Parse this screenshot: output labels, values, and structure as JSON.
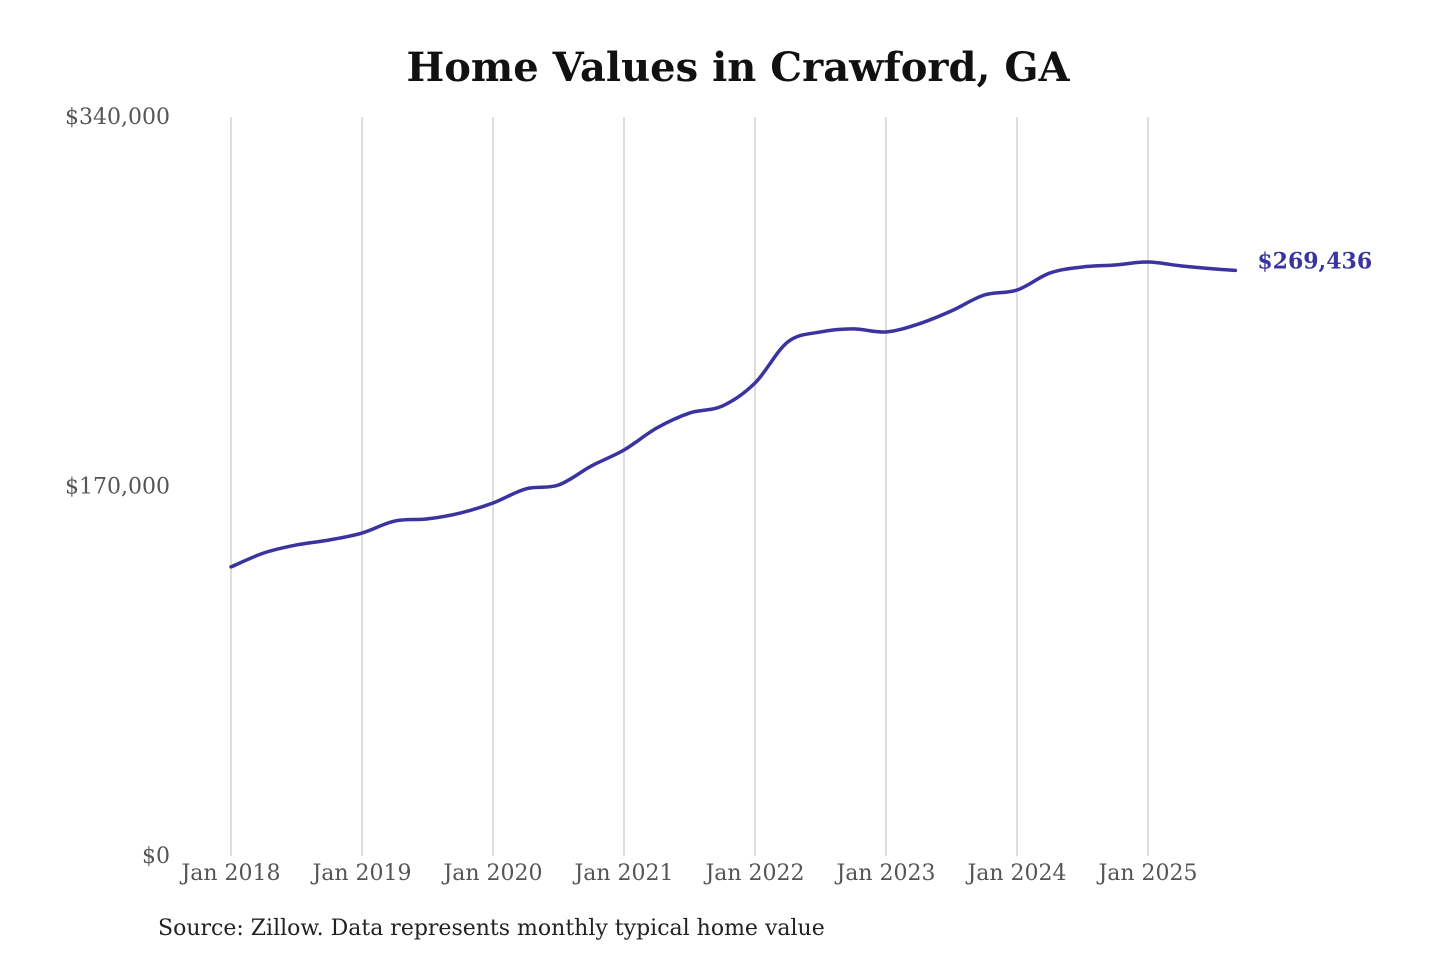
{
  "chart_data": {
    "type": "line",
    "title": "Home Values in Crawford, GA",
    "xlabel": "",
    "ylabel": "",
    "ylim": [
      0,
      340000
    ],
    "y_ticks": [
      "$0",
      "$170,000",
      "$340,000"
    ],
    "y_tick_values": [
      0,
      170000,
      340000
    ],
    "x_ticks": [
      "Jan 2018",
      "Jan 2019",
      "Jan 2020",
      "Jan 2021",
      "Jan 2022",
      "Jan 2023",
      "Jan 2024",
      "Jan 2025"
    ],
    "grid": "vertical",
    "line_color": "#3a33a0",
    "end_label": "$269,436",
    "series": [
      {
        "x": [
          "2018-01",
          "2018-04",
          "2018-07",
          "2018-10",
          "2019-01",
          "2019-04",
          "2019-07",
          "2019-10",
          "2020-01",
          "2020-04",
          "2020-07",
          "2020-10",
          "2021-01",
          "2021-04",
          "2021-07",
          "2021-10",
          "2022-01",
          "2022-04",
          "2022-07",
          "2022-10",
          "2023-01",
          "2023-04",
          "2023-07",
          "2023-10",
          "2024-01",
          "2024-04",
          "2024-07",
          "2024-10",
          "2025-01",
          "2025-04",
          "2025-07",
          "2025-09"
        ],
        "values": [
          133000,
          139400,
          143100,
          145400,
          148600,
          154100,
          155100,
          157800,
          162400,
          168900,
          170700,
          179400,
          186800,
          196900,
          203800,
          207000,
          217600,
          236500,
          241100,
          242500,
          241100,
          244800,
          250800,
          258100,
          260400,
          268200,
          271000,
          271900,
          273300,
          271500,
          270100,
          269436
        ]
      }
    ]
  },
  "source": "Source: Zillow. Data represents monthly typical home value"
}
